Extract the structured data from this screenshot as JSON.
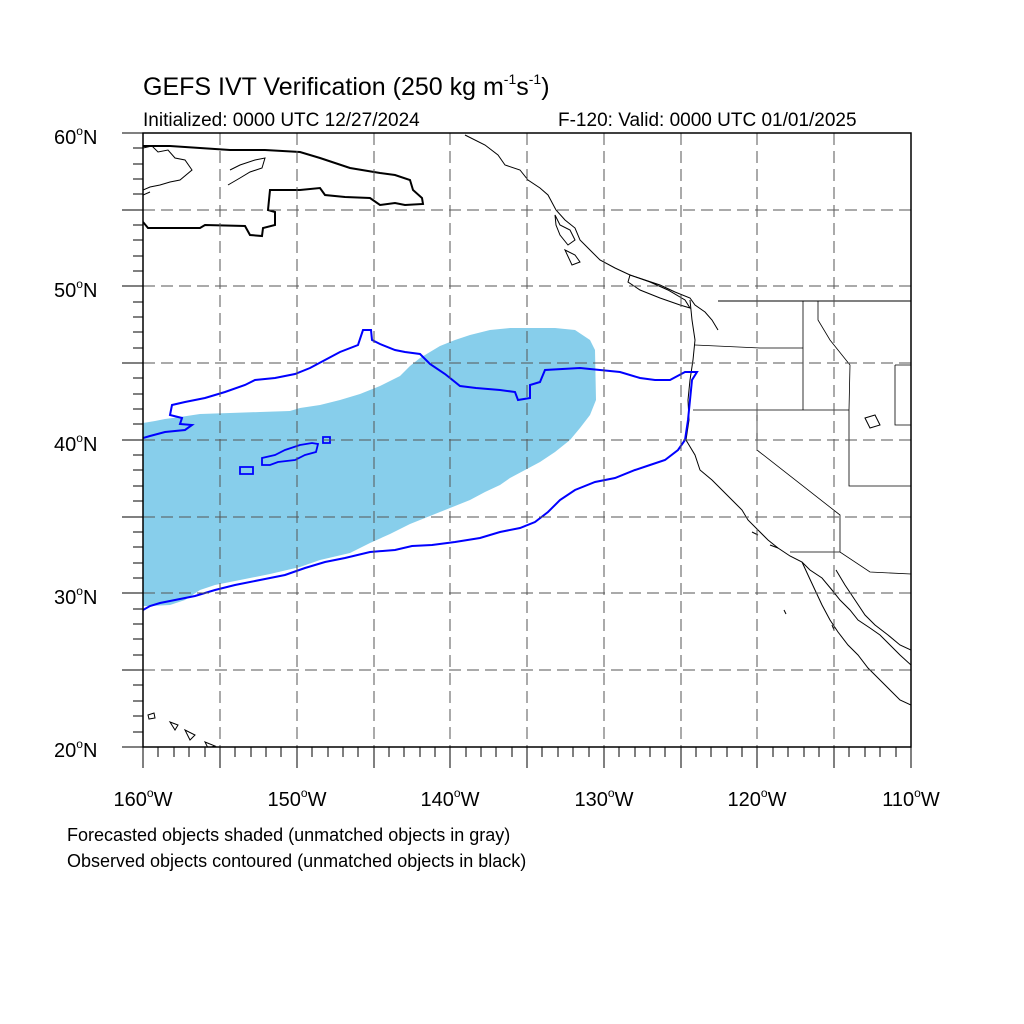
{
  "title": {
    "main": "GEFS IVT Verification (250 kg m",
    "exp1": "-1",
    "mid": "s",
    "exp2": "-1",
    "close": ")"
  },
  "initialized": "Initialized: 0000 UTC 12/27/2024",
  "valid": "F-120: Valid: 0000 UTC 01/01/2025",
  "axes": {
    "x_ticks": [
      {
        "value": "160",
        "dir": "W"
      },
      {
        "value": "150",
        "dir": "W"
      },
      {
        "value": "140",
        "dir": "W"
      },
      {
        "value": "130",
        "dir": "W"
      },
      {
        "value": "120",
        "dir": "W"
      },
      {
        "value": "110",
        "dir": "W"
      }
    ],
    "y_ticks": [
      {
        "value": "60",
        "dir": "N"
      },
      {
        "value": "50",
        "dir": "N"
      },
      {
        "value": "40",
        "dir": "N"
      },
      {
        "value": "30",
        "dir": "N"
      },
      {
        "value": "20",
        "dir": "N"
      }
    ],
    "degree_symbol": "o",
    "lon_range": [
      -160,
      -110
    ],
    "lat_range": [
      20,
      60
    ],
    "grid": "dashed every 5 degrees"
  },
  "legend_notes": [
    "Forecasted objects shaded (unmatched objects in gray)",
    "Observed objects contoured (unmatched objects in black)"
  ],
  "colors": {
    "forecast_matched_fill": "#87ceeb",
    "observed_matched_contour": "#0000ff",
    "observed_unmatched_contour": "#000000",
    "coastline": "#000000",
    "grid": "#555555"
  }
}
